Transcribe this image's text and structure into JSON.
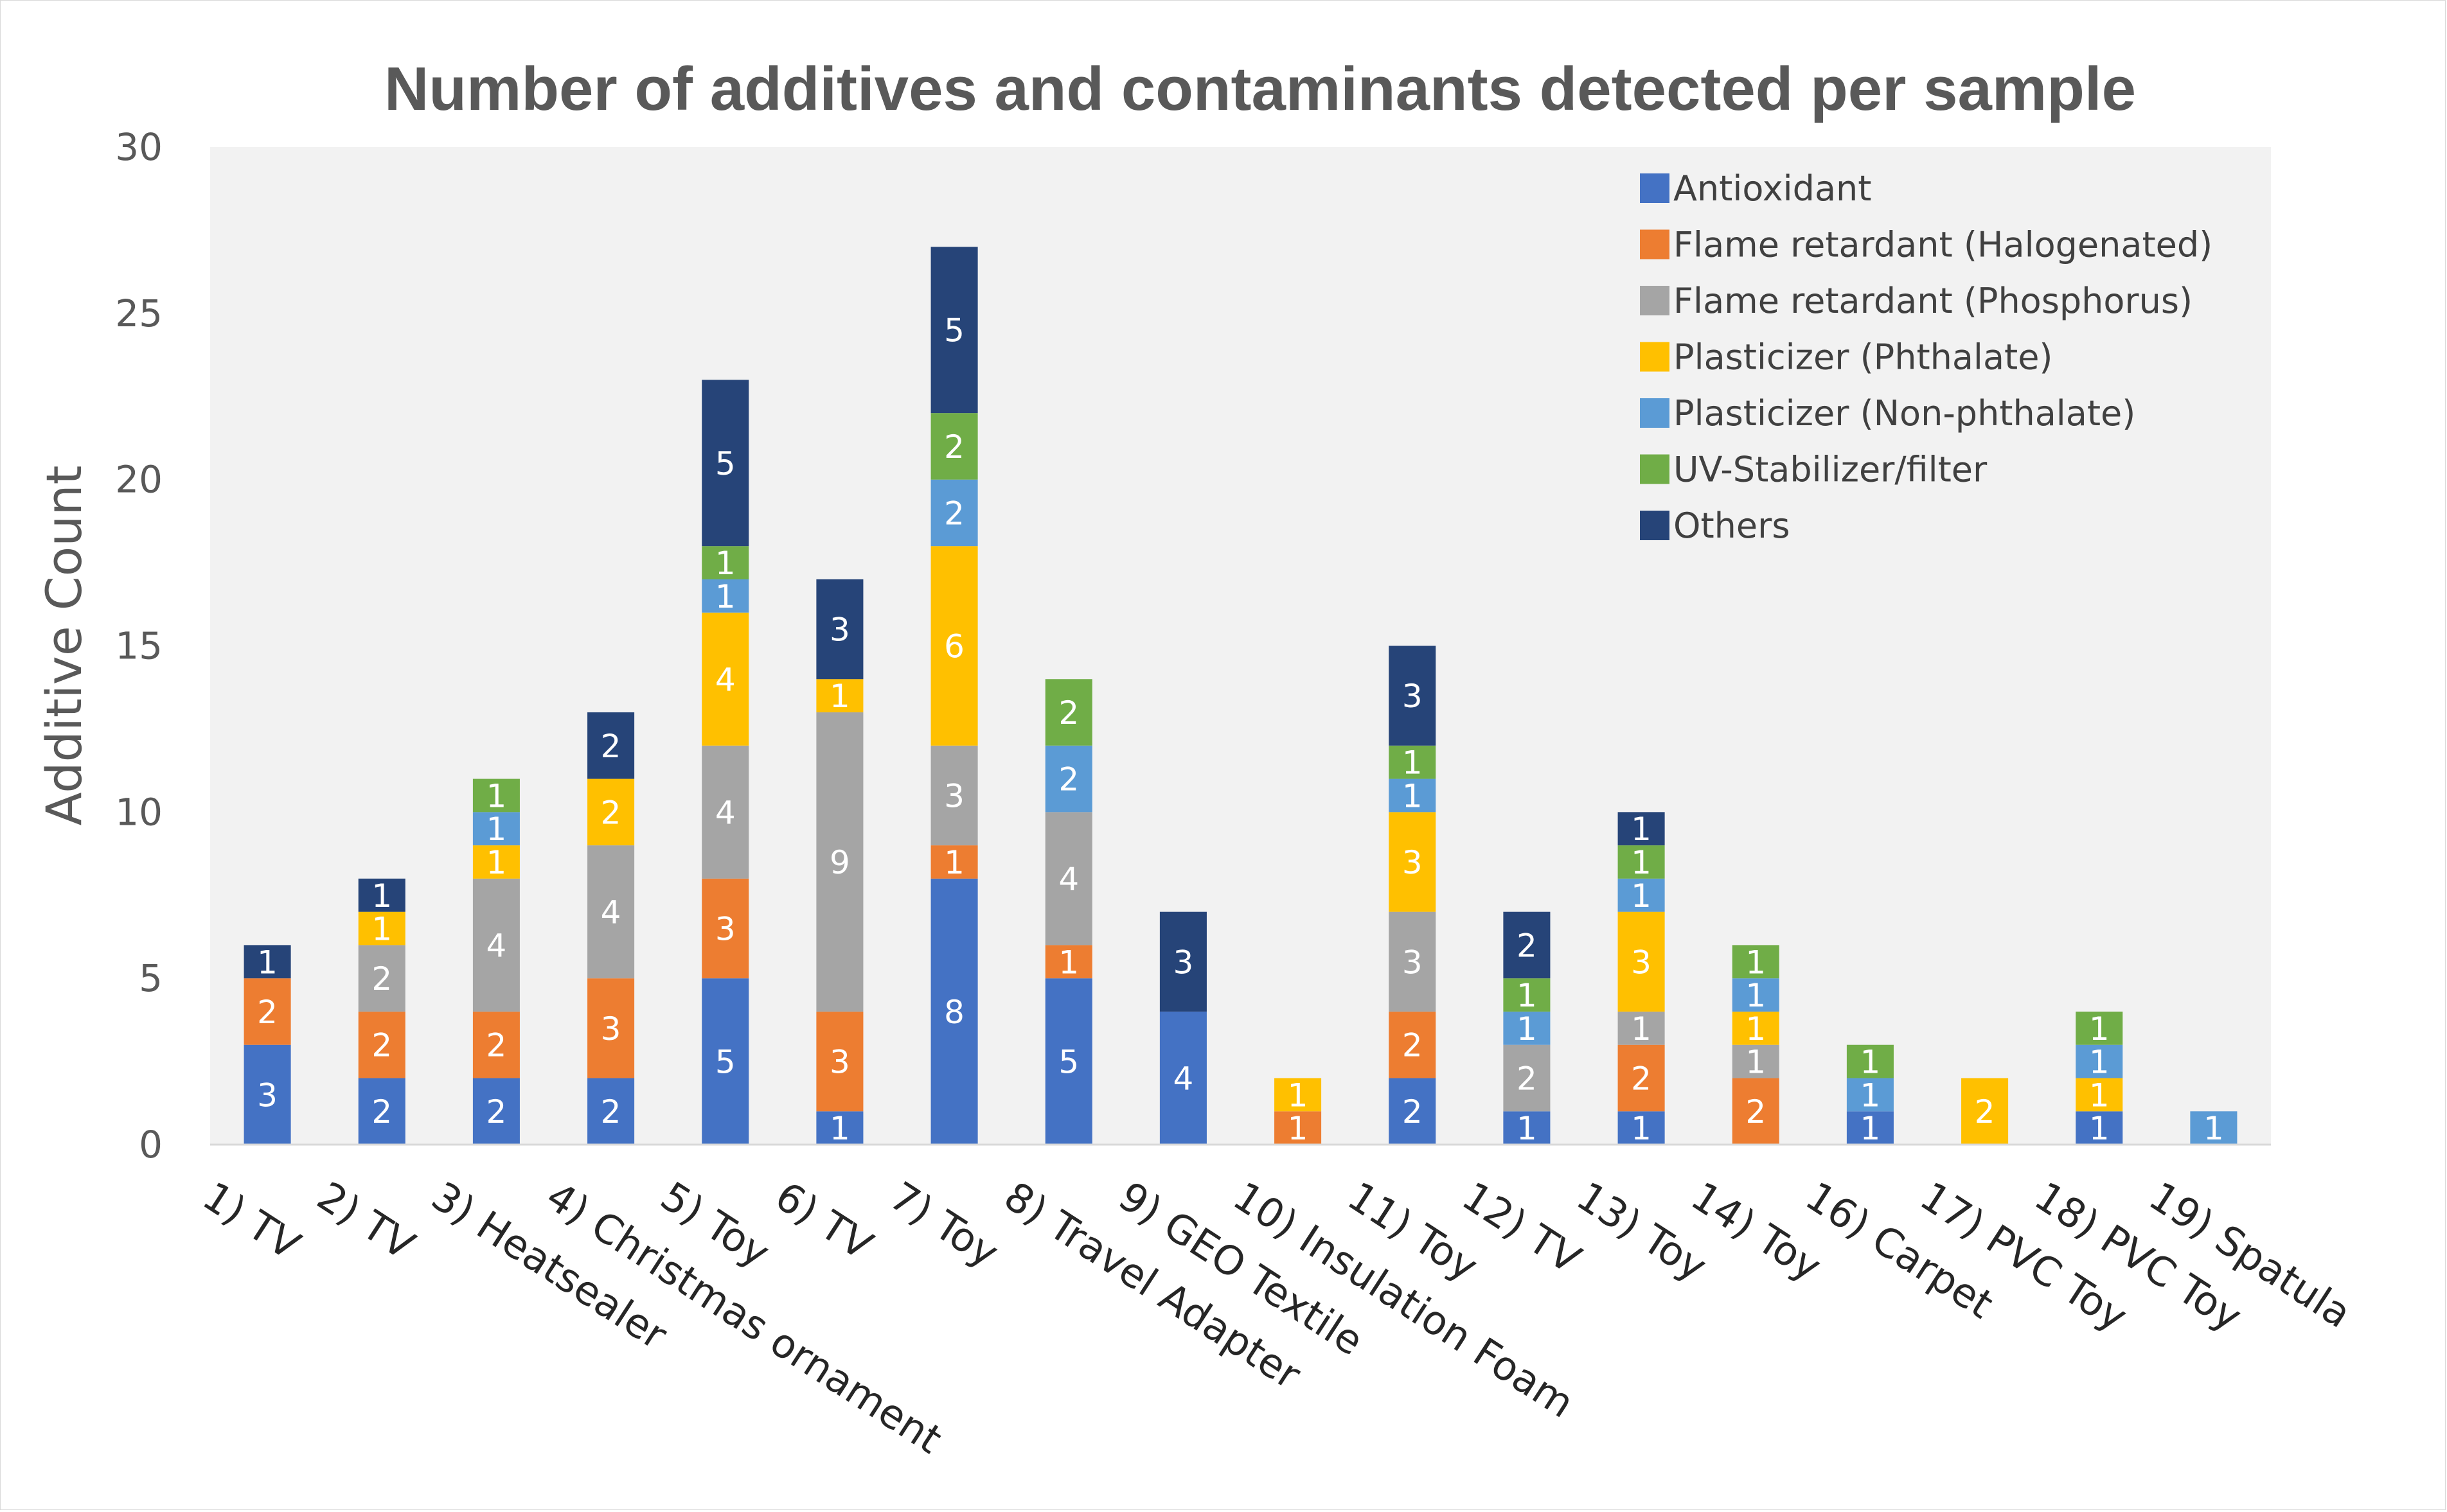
{
  "chart_data": {
    "type": "bar",
    "stacked": true,
    "title": "Number of additives and contaminants detected per sample",
    "xlabel": "",
    "ylabel": "Additive Count",
    "ylim": [
      0,
      30
    ],
    "yticks": [
      0,
      5,
      10,
      15,
      20,
      25,
      30
    ],
    "grid": false,
    "legend_position": "top-right",
    "categories": [
      "1) TV",
      "2) TV",
      "3) Heatsealer",
      "4) Christmas ornament",
      "5) Toy",
      "6) TV",
      "7) Toy",
      "8) Travel Adapter",
      "9) GEO Textile",
      "10) Insulation Foam",
      "11) Toy",
      "12) TV",
      "13) Toy",
      "14) Toy",
      "16) Carpet",
      "17) PVC Toy",
      "18) PVC Toy",
      "19) Spatula"
    ],
    "series": [
      {
        "name": "Antioxidant",
        "color": "#4472C4",
        "label_color": "#ffffff",
        "values": [
          3,
          2,
          2,
          2,
          5,
          1,
          8,
          5,
          4,
          0,
          2,
          1,
          1,
          0,
          1,
          0,
          1,
          0
        ]
      },
      {
        "name": "Flame retardant (Halogenated)",
        "color": "#ED7D31",
        "label_color": "#ffffff",
        "values": [
          2,
          2,
          2,
          3,
          3,
          3,
          1,
          1,
          0,
          1,
          2,
          0,
          2,
          2,
          0,
          0,
          0,
          0
        ]
      },
      {
        "name": "Flame retardant (Phosphorus)",
        "color": "#A5A5A5",
        "label_color": "#ffffff",
        "values": [
          0,
          2,
          4,
          4,
          4,
          9,
          3,
          4,
          0,
          0,
          3,
          2,
          1,
          1,
          0,
          0,
          0,
          0
        ]
      },
      {
        "name": "Plasticizer (Phthalate)",
        "color": "#FFC000",
        "label_color": "#ffffff",
        "values": [
          0,
          1,
          1,
          2,
          4,
          1,
          6,
          0,
          0,
          1,
          3,
          0,
          3,
          1,
          0,
          2,
          1,
          0
        ]
      },
      {
        "name": "Plasticizer (Non-phthalate)",
        "color": "#5B9BD5",
        "label_color": "#ffffff",
        "values": [
          0,
          0,
          1,
          0,
          1,
          0,
          2,
          2,
          0,
          0,
          1,
          1,
          1,
          1,
          1,
          0,
          1,
          1
        ]
      },
      {
        "name": "UV-Stabilizer/filter",
        "color": "#70AD47",
        "label_color": "#ffffff",
        "values": [
          0,
          0,
          1,
          0,
          1,
          0,
          2,
          2,
          0,
          0,
          1,
          1,
          1,
          1,
          1,
          0,
          1,
          0
        ]
      },
      {
        "name": "Others",
        "color": "#264478",
        "label_color": "#ffffff",
        "values": [
          1,
          1,
          0,
          2,
          5,
          3,
          5,
          0,
          3,
          0,
          3,
          2,
          1,
          0,
          0,
          0,
          0,
          0
        ]
      }
    ]
  }
}
